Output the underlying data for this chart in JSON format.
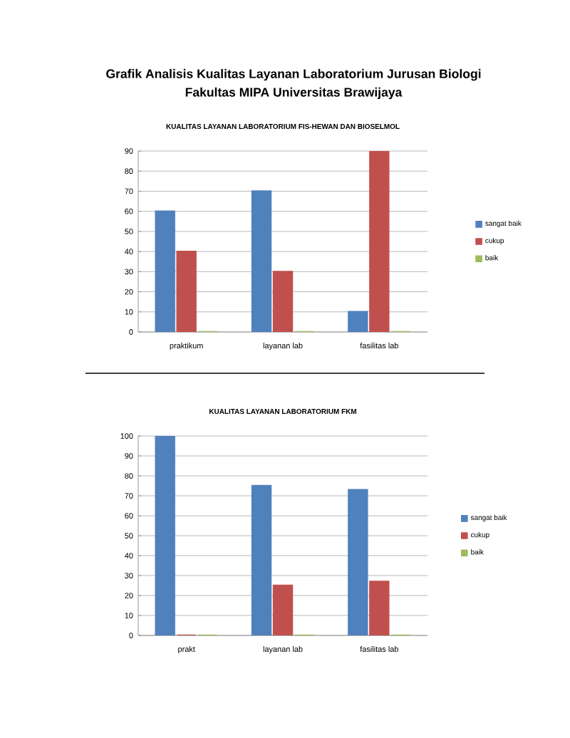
{
  "chart_data": [
    {
      "type": "bar",
      "title": "Grafik Analisis Kualitas Layanan Laboratorium Jurusan Biologi Fakultas MIPA Universitas Brawijaya",
      "subtitle": "KUALITAS LAYANAN LABORATORIUM FIS-HEWAN DAN BIOSELMOL",
      "categories": [
        "praktikum",
        "layanan lab",
        "fasilitas lab"
      ],
      "series": [
        {
          "name": "sangat baik",
          "color": "#4f81bd",
          "values": [
            60,
            70,
            10
          ]
        },
        {
          "name": "cukup",
          "color": "#c0504d",
          "values": [
            40,
            30,
            90
          ]
        },
        {
          "name": "baik",
          "color": "#9bbb59",
          "values": [
            0,
            0,
            0
          ]
        }
      ],
      "ylim": [
        0,
        90
      ],
      "yticks": [
        0,
        10,
        20,
        30,
        40,
        50,
        60,
        70,
        80,
        90
      ],
      "grid": "y",
      "legend": "right"
    },
    {
      "type": "bar",
      "title": "KUALITAS LAYANAN LABORATORIUM FKM",
      "categories": [
        "prakt",
        "layanan lab",
        "fasilitas lab"
      ],
      "series": [
        {
          "name": "sangat baik",
          "color": "#4f81bd",
          "values": [
            100,
            75,
            73
          ]
        },
        {
          "name": "cukup",
          "color": "#c0504d",
          "values": [
            0,
            25,
            27
          ]
        },
        {
          "name": "baik",
          "color": "#9bbb59",
          "values": [
            0,
            0,
            0
          ]
        }
      ],
      "ylim": [
        0,
        100
      ],
      "yticks": [
        0,
        10,
        20,
        30,
        40,
        50,
        60,
        70,
        80,
        90,
        100
      ],
      "grid": "y",
      "legend": "right"
    }
  ]
}
